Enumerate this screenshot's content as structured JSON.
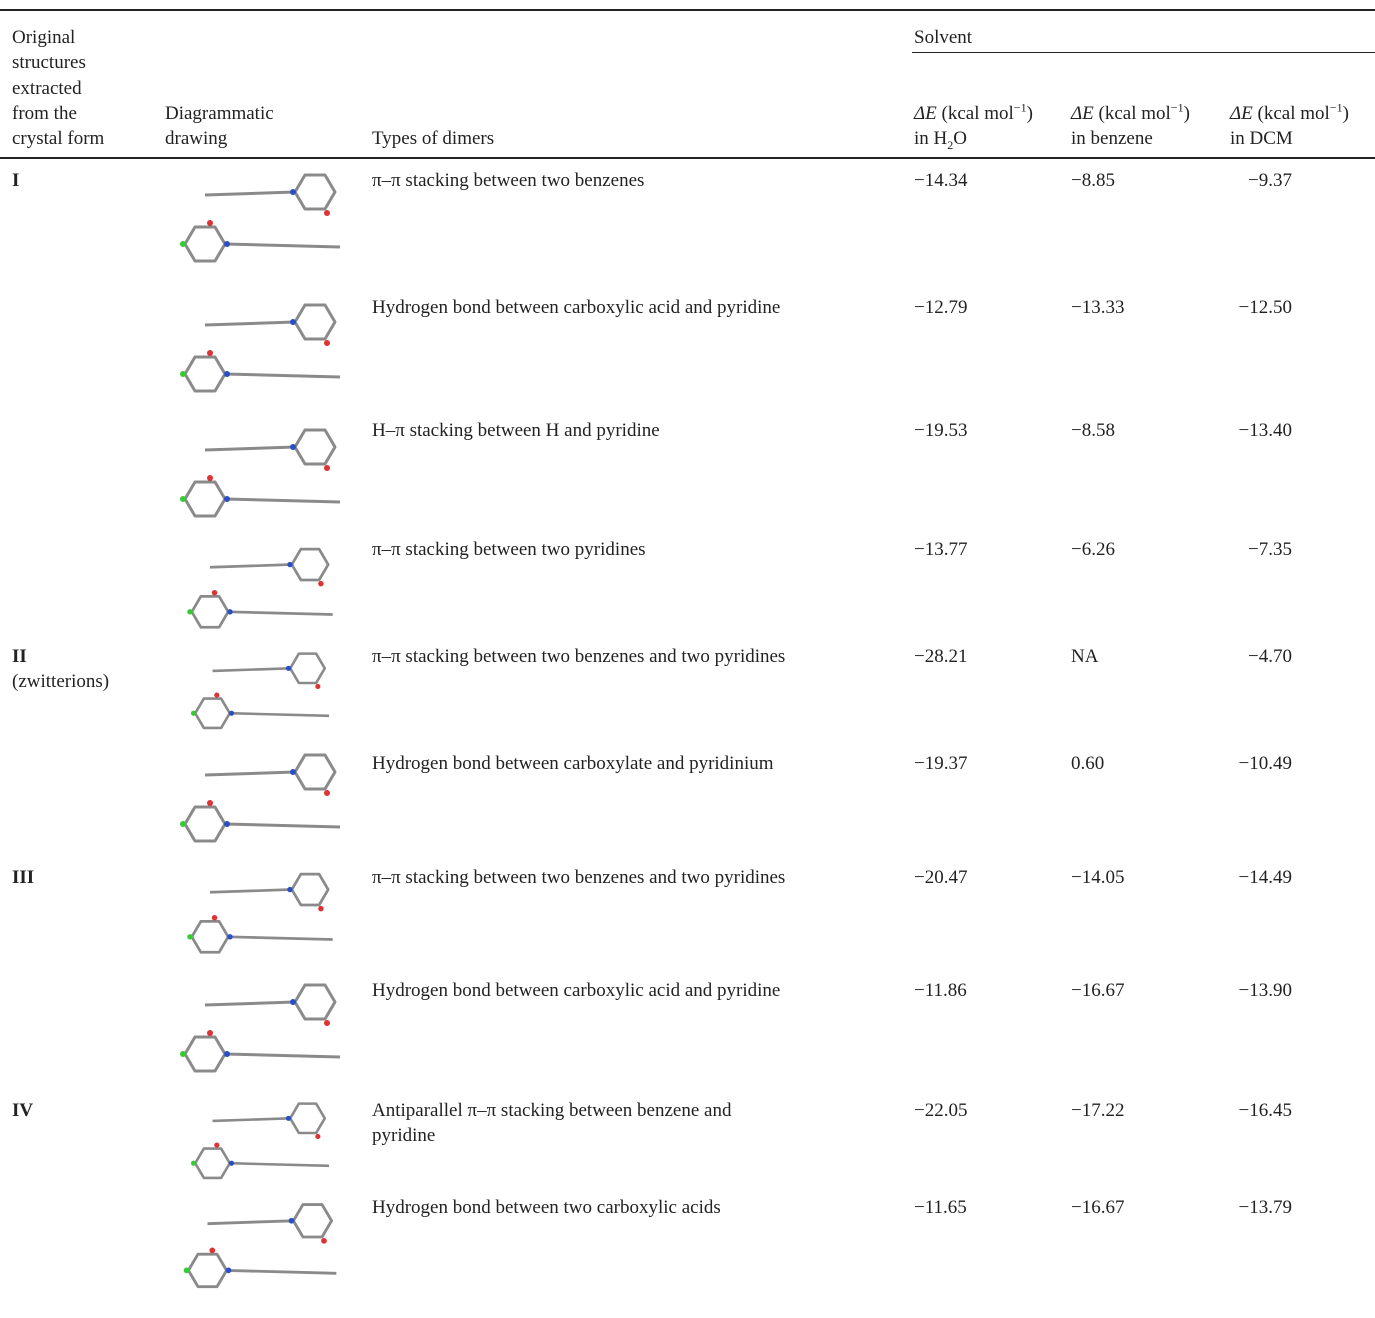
{
  "header": {
    "form": [
      "Original",
      "structures",
      "extracted",
      "from the",
      "crystal form"
    ],
    "drawing": [
      "Diagrammatic",
      "drawing"
    ],
    "type": "Types of dimers",
    "solvent": "Solvent",
    "columns": [
      {
        "symbol": "ΔE",
        "unit": "(kcal mol",
        "unit_exp": "−1",
        "unit_close": ")",
        "medium": "in H",
        "medium_sub": "2",
        "medium_end": "O"
      },
      {
        "symbol": "ΔE",
        "unit": "(kcal mol",
        "unit_exp": "−1",
        "unit_close": ")",
        "medium": "in benzene"
      },
      {
        "symbol": "ΔE",
        "unit": "(kcal mol",
        "unit_exp": "−1",
        "unit_close": ")",
        "medium": "in DCM"
      }
    ]
  },
  "table": {
    "rows": [
      {
        "form": [
          "I"
        ],
        "type": "π–π stacking between two benzenes",
        "values": [
          "−14.34",
          "−8.85",
          "−9.37"
        ]
      },
      {
        "form": [],
        "type": "Hydrogen bond between carboxylic acid and pyridine",
        "values": [
          "−12.79",
          "−13.33",
          "−12.50"
        ]
      },
      {
        "form": [],
        "type": "H–π stacking between H and pyridine",
        "values": [
          "−19.53",
          "−8.58",
          "−13.40"
        ]
      },
      {
        "form": [],
        "type": "π–π stacking between two pyridines",
        "values": [
          "−13.77",
          "−6.26",
          "−7.35"
        ]
      },
      {
        "form": [
          "II",
          "(zwitterions)"
        ],
        "type": "π–π stacking between two benzenes and two pyridines",
        "values": [
          "−28.21",
          "NA",
          "−4.70"
        ]
      },
      {
        "form": [],
        "type": "Hydrogen bond between carboxylate and pyridinium",
        "values": [
          "−19.37",
          "0.60",
          "−10.49"
        ]
      },
      {
        "form": [
          "III"
        ],
        "type": "π–π stacking between two benzenes and two pyridines",
        "values": [
          "−20.47",
          "−14.05",
          "−14.49"
        ]
      },
      {
        "form": [],
        "type": "Hydrogen bond between carboxylic acid and pyridine",
        "values": [
          "−11.86",
          "−16.67",
          "−13.90"
        ]
      },
      {
        "form": [
          "IV"
        ],
        "type": [
          "Antiparallel π–π stacking between benzene and",
          "pyridine"
        ],
        "values": [
          "−22.05",
          "−17.22",
          "−16.45"
        ]
      },
      {
        "form": [],
        "type": "Hydrogen bond between two carboxylic acids",
        "values": [
          "−11.65",
          "−16.67",
          "−13.79"
        ]
      }
    ]
  }
}
